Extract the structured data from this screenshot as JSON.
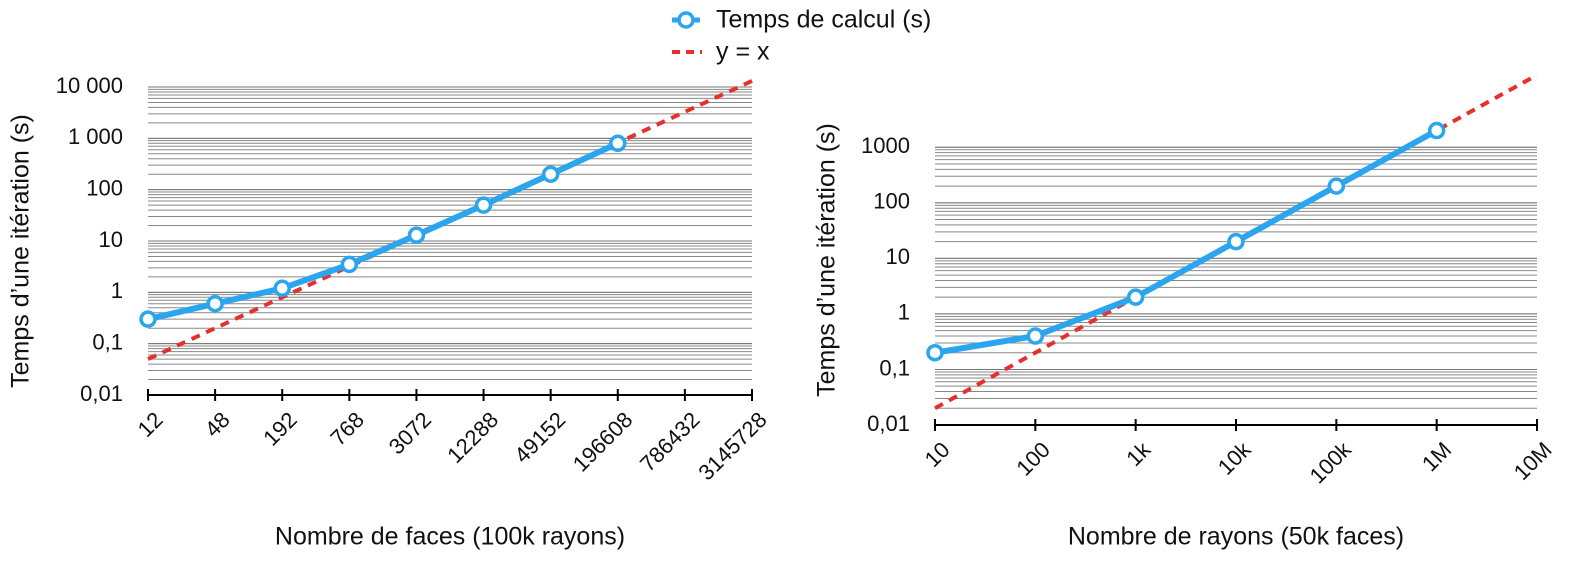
{
  "chart_data": [
    {
      "type": "line",
      "ylabel": "Temps d’une itération (s)",
      "xlabel": "Nombre de faces (100k rayons)",
      "xscale": "log",
      "yscale": "log",
      "grid": "minor",
      "xlim": [
        12,
        3145728
      ],
      "xticks": [
        12,
        48,
        192,
        768,
        3072,
        12288,
        49152,
        196608,
        786432,
        3145728
      ],
      "ylim": [
        0.01,
        10000
      ],
      "yticks": [
        {
          "value": 0.01,
          "label": "0,01"
        },
        {
          "value": 0.1,
          "label": "0,1"
        },
        1,
        10,
        100,
        {
          "value": 1000,
          "label": "1 000"
        },
        {
          "value": 10000,
          "label": "10 000"
        }
      ],
      "series": [
        {
          "name": "Temps de calcul (s)",
          "color": "#2ba6ee",
          "style": "solid-markers",
          "x": [
            12,
            48,
            192,
            768,
            3072,
            12288,
            49152,
            196608
          ],
          "values": [
            0.3,
            0.6,
            1.2,
            3.5,
            13,
            50,
            200,
            800
          ]
        },
        {
          "name": "y = x",
          "color": "#e4312b",
          "style": "dashed",
          "x": [
            12,
            3145728
          ],
          "values": [
            0.05,
            13107.2
          ]
        }
      ]
    },
    {
      "type": "line",
      "ylabel": "Temps d’une itération (s)",
      "xlabel": "Nombre de rayons (50k faces)",
      "xscale": "log",
      "yscale": "log",
      "grid": "minor",
      "xlim": [
        10,
        10000000
      ],
      "xticks": [
        10,
        100,
        {
          "value": 1000,
          "label": "1k"
        },
        {
          "value": 10000,
          "label": "10k"
        },
        {
          "value": 100000,
          "label": "100k"
        },
        {
          "value": 1000000,
          "label": "1M"
        },
        {
          "value": 10000000,
          "label": "10M"
        }
      ],
      "ylim": [
        0.01,
        20000
      ],
      "yticks": [
        {
          "value": 0.01,
          "label": "0,01"
        },
        {
          "value": 0.1,
          "label": "0,1"
        },
        1,
        10,
        100,
        1000
      ],
      "series": [
        {
          "color": "#2ba6ee",
          "style": "solid-markers",
          "x": [
            10,
            100,
            1000,
            10000,
            100000,
            1000000
          ],
          "values": [
            0.2,
            0.4,
            2,
            20,
            200,
            2000
          ]
        },
        {
          "color": "#e4312b",
          "style": "dashed",
          "x": [
            10,
            10000000
          ],
          "values": [
            0.02,
            20000
          ]
        }
      ]
    }
  ]
}
